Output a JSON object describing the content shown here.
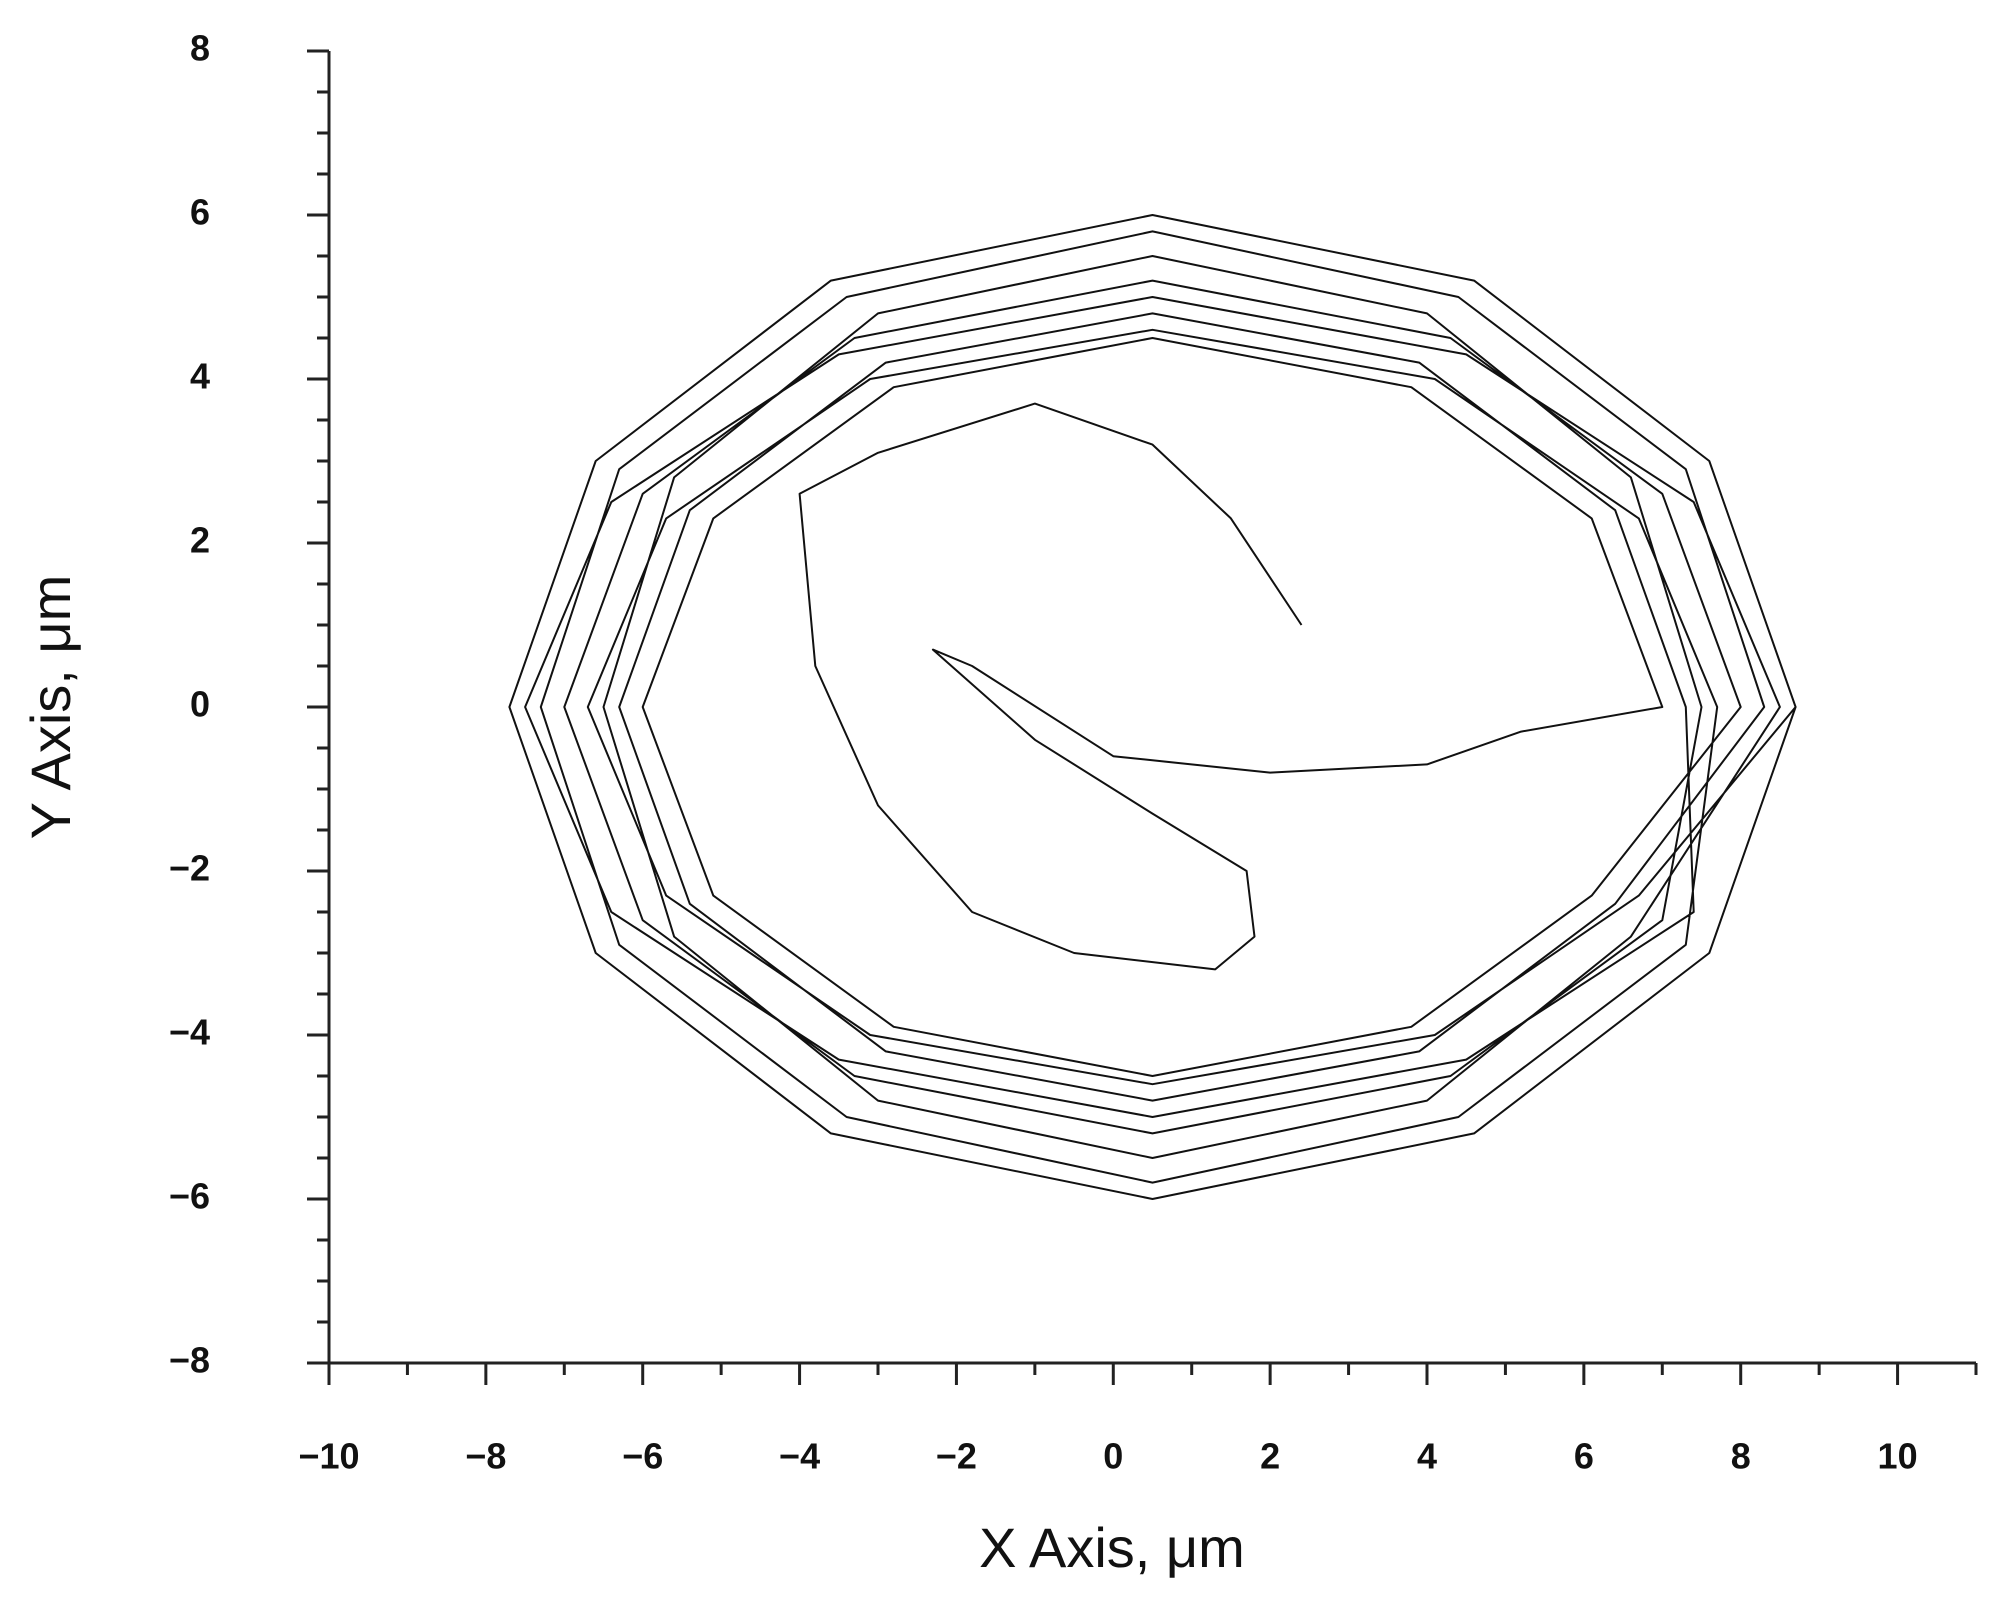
{
  "chart_data": {
    "type": "line",
    "x_label": "X Axis, μm",
    "y_label": "Y Axis, μm",
    "color": "#111111",
    "x": [
      2.4,
      1.5,
      0.5,
      -1,
      -3,
      -4,
      -3.8,
      -3,
      -1.8,
      -0.5,
      1.3,
      1.8,
      1.7,
      0.5,
      -1,
      -2.3,
      -1.8,
      0,
      2,
      4,
      5.2,
      7.0,
      6.1,
      3.8,
      0.5,
      -2.8,
      -5.1,
      -6.0,
      -5.1,
      -2.8,
      0.5,
      3.8,
      6.1,
      8.0,
      7.0,
      4.3,
      0.5,
      -3.3,
      -6.0,
      -7.0,
      -6.0,
      -3.3,
      0.5,
      4.3,
      7.0,
      7.5,
      6.6,
      4.0,
      0.5,
      -3.0,
      -5.6,
      -6.5,
      -5.6,
      -3.0,
      0.5,
      4.0,
      6.6,
      8.5,
      7.4,
      4.5,
      0.5,
      -3.5,
      -6.4,
      -7.5,
      -6.4,
      -3.5,
      0.5,
      4.5,
      7.4,
      7.3,
      6.4,
      3.9,
      0.5,
      -2.9,
      -5.4,
      -6.3,
      -5.4,
      -2.9,
      0.5,
      3.9,
      6.4,
      8.3,
      7.3,
      4.4,
      0.5,
      -3.4,
      -6.3,
      -7.3,
      -6.3,
      -3.4,
      0.5,
      4.4,
      7.3,
      7.7,
      6.7,
      4.1,
      0.5,
      -3.1,
      -5.7,
      -6.7,
      -5.7,
      -3.1,
      0.5,
      4.1,
      6.7,
      8.7,
      7.6,
      4.6,
      0.5,
      -3.6,
      -6.6,
      -7.7,
      -6.6,
      -3.6,
      0.5,
      4.6,
      7.6,
      8.7
    ],
    "values": [
      1.0,
      2.3,
      3.2,
      3.7,
      3.1,
      2.6,
      0.5,
      -1.2,
      -2.5,
      -3.0,
      -3.2,
      -2.8,
      -2.0,
      -1.3,
      -0.4,
      0.7,
      0.5,
      -0.6,
      -0.8,
      -0.7,
      -0.3,
      0,
      2.3,
      3.9,
      4.5,
      3.9,
      2.3,
      0,
      -2.3,
      -3.9,
      -4.5,
      -3.9,
      -2.3,
      0,
      2.6,
      4.5,
      5.2,
      4.5,
      2.6,
      0,
      -2.6,
      -4.5,
      -5.2,
      -4.5,
      -2.6,
      0,
      2.8,
      4.8,
      5.5,
      4.8,
      2.8,
      0,
      -2.8,
      -4.8,
      -5.5,
      -4.8,
      -2.8,
      0,
      2.5,
      4.3,
      5.0,
      4.3,
      2.5,
      0,
      -2.5,
      -4.3,
      -5.0,
      -4.3,
      -2.5,
      0,
      2.4,
      4.2,
      4.8,
      4.2,
      2.4,
      0,
      -2.4,
      -4.2,
      -4.8,
      -4.2,
      -2.4,
      0,
      2.9,
      5.0,
      5.8,
      5.0,
      2.9,
      0,
      -2.9,
      -5.0,
      -5.8,
      -5.0,
      -2.9,
      0,
      2.3,
      4.0,
      4.6,
      4.0,
      2.3,
      0,
      -2.3,
      -4.0,
      -4.6,
      -4.0,
      -2.3,
      0,
      3.0,
      5.2,
      6.0,
      5.2,
      3.0,
      0,
      -3.0,
      -5.2,
      -6.0,
      -5.2,
      -3.0,
      0
    ],
    "xlim": [
      -10,
      11
    ],
    "ylim": [
      -8,
      8
    ],
    "xticks": [
      {
        "value": -10,
        "label": "−10"
      },
      {
        "value": -8,
        "label": "−8"
      },
      {
        "value": -6,
        "label": "−6"
      },
      {
        "value": -4,
        "label": "−4"
      },
      {
        "value": -2,
        "label": "−2"
      },
      0,
      2,
      4,
      6,
      8,
      10
    ],
    "yticks": [
      {
        "value": -8,
        "label": "−8"
      },
      {
        "value": -6,
        "label": "−6"
      },
      {
        "value": -4,
        "label": "−4"
      },
      {
        "value": -2,
        "label": "−2"
      },
      0,
      2,
      4,
      6,
      8
    ],
    "xticks_minor": [
      -9,
      -7,
      -5,
      -3,
      -1,
      1,
      3,
      5,
      7,
      9,
      11
    ],
    "yticks_minor": [
      -7.5,
      -7,
      -6.5,
      -5.5,
      -5,
      -4.5,
      -3.5,
      -3,
      -2.5,
      -1.5,
      -1,
      -0.5,
      0.5,
      1,
      1.5,
      2.5,
      3,
      3.5,
      4.5,
      5,
      5.5,
      6.5,
      7,
      7.5
    ],
    "grid": false
  }
}
